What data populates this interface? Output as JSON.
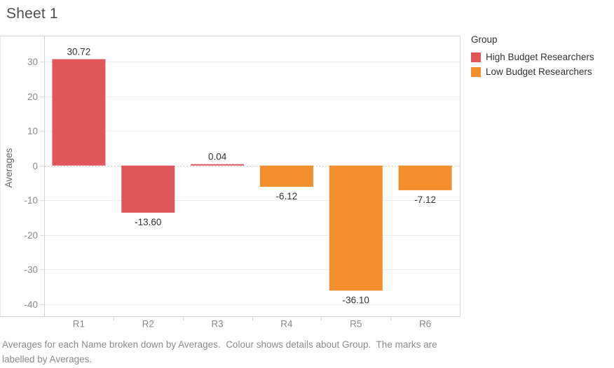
{
  "header": {
    "title": "Sheet 1"
  },
  "legend": {
    "title": "Group",
    "items": [
      {
        "label": "High Budget Researchers",
        "color": "#e05759"
      },
      {
        "label": "Low Budget Researchers",
        "color": "#f28e2b"
      }
    ]
  },
  "caption": {
    "text": "Averages for each Name broken down by Averages.  Colour shows details about Group.  The marks are labelled by Averages."
  },
  "chart_data": {
    "type": "bar",
    "title": "Sheet 1",
    "categories": [
      "R1",
      "R2",
      "R3",
      "R4",
      "R5",
      "R6"
    ],
    "values": [
      30.72,
      -13.6,
      0.04,
      -6.12,
      -36.1,
      -7.12
    ],
    "bar_labels": [
      "30.72",
      "-13.60",
      "0.04",
      "-6.12",
      "-36.10",
      "-7.12"
    ],
    "groups": [
      "High Budget Researchers",
      "High Budget Researchers",
      "High Budget Researchers",
      "Low Budget Researchers",
      "Low Budget Researchers",
      "Low Budget Researchers"
    ],
    "group_colors": {
      "High Budget Researchers": "#e05759",
      "Low Budget Researchers": "#f28e2b"
    },
    "xlabel": "",
    "ylabel": "Averages",
    "y_ticks": [
      30,
      20,
      10,
      0,
      -10,
      -20,
      -30,
      -40
    ],
    "ylim": [
      -43.5,
      37.5
    ],
    "grid": "horizontal",
    "zero_line": "dotted",
    "legend_position": "right"
  },
  "colors": {
    "bar_label": "#333333",
    "tick_label": "#8a8a8a",
    "axis_title": "#666666",
    "border": "#d4d4d4",
    "gridline": "#ececec",
    "zero_line": "#b8b8b8",
    "tick_mark": "#d7d7d7"
  }
}
